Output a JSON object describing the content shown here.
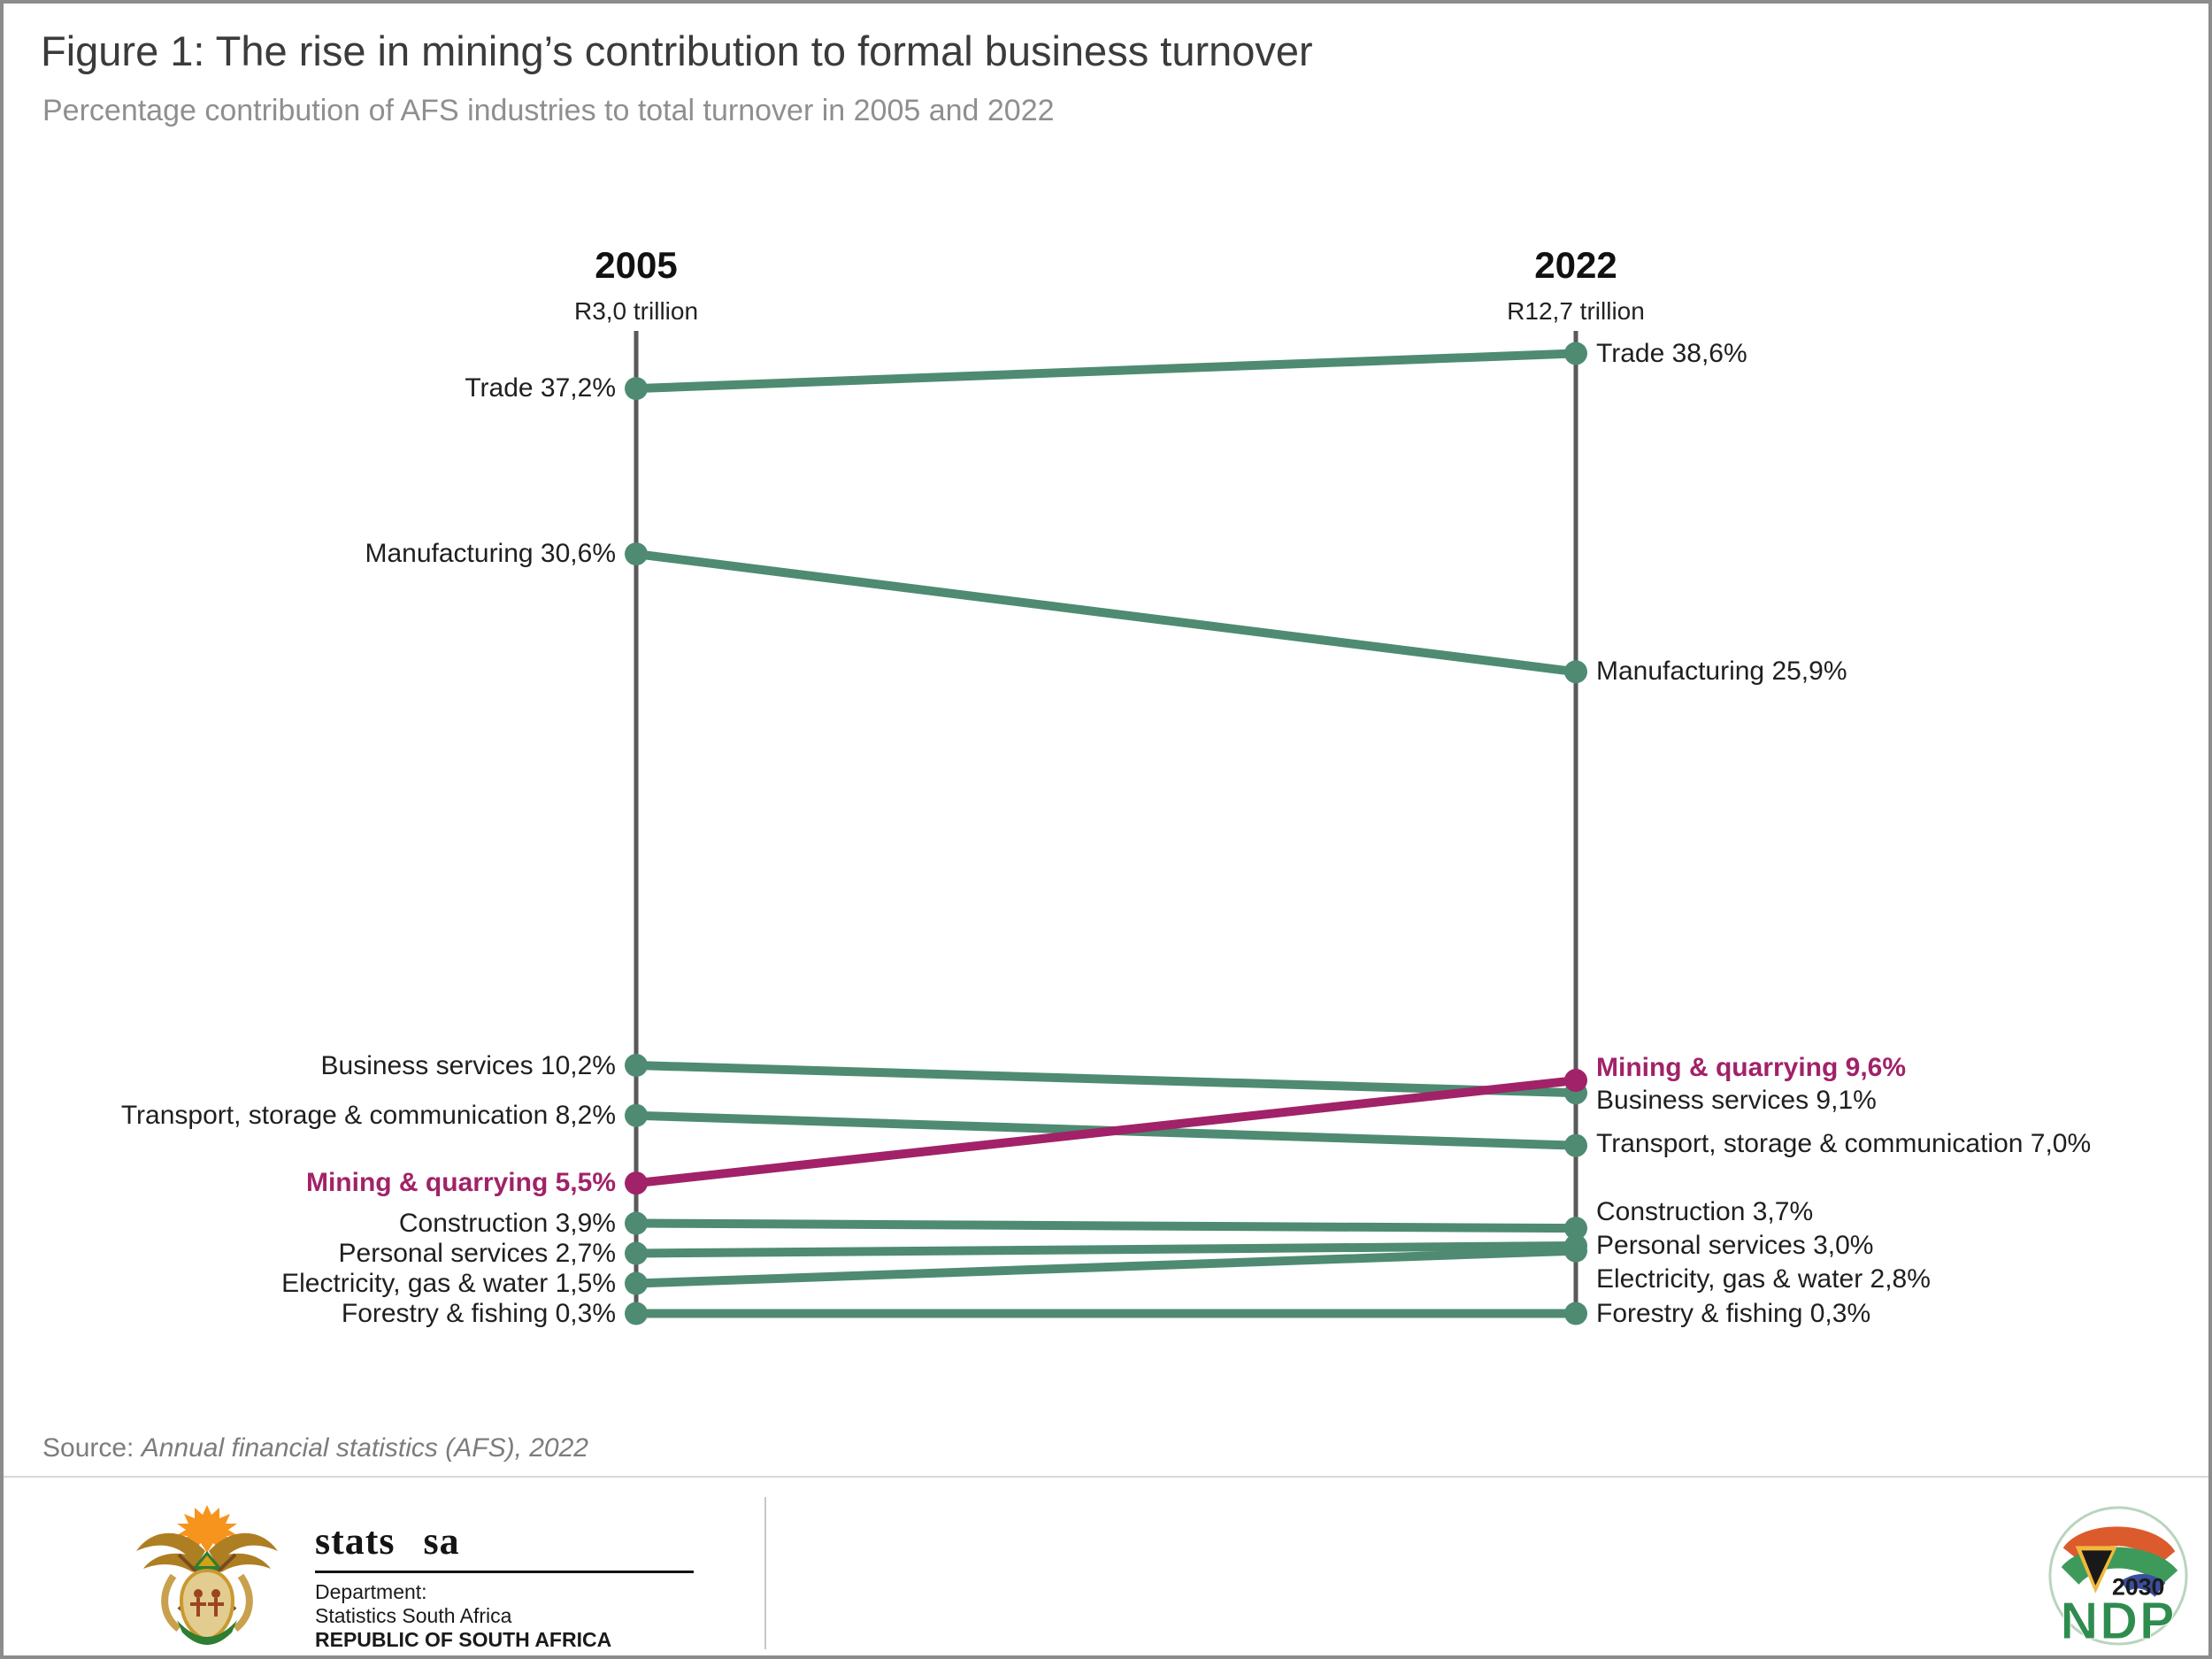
{
  "page": {
    "source_prefix": "Source: ",
    "source_text": "Annual financial statistics (AFS), 2022"
  },
  "chart_data": {
    "type": "slope",
    "title": "Figure 1: The rise in mining’s contribution to formal business turnover",
    "subtitle": "Percentage contribution of AFS industries to total turnover in 2005 and 2022",
    "unit": "percent of total turnover",
    "ylim": [
      0,
      40
    ],
    "grid": false,
    "columns": [
      {
        "year": "2005",
        "total": "R3,0 trillion"
      },
      {
        "year": "2022",
        "total": "R12,7 trillion"
      }
    ],
    "series": [
      {
        "name": "Trade",
        "values": [
          37.2,
          38.6
        ],
        "labels": [
          "Trade 37,2%",
          "Trade 38,6%"
        ],
        "label_y": [
          435,
          396
        ],
        "highlight": false
      },
      {
        "name": "Manufacturing",
        "values": [
          30.6,
          25.9
        ],
        "labels": [
          "Manufacturing 30,6%",
          "Manufacturing 25,9%"
        ],
        "label_y": [
          622,
          755
        ],
        "highlight": false
      },
      {
        "name": "Business services",
        "values": [
          10.2,
          9.1
        ],
        "labels": [
          "Business services 10,2%",
          "Business services 9,1%"
        ],
        "label_y": [
          1201,
          1240
        ],
        "highlight": false
      },
      {
        "name": "Transport, storage & communication",
        "values": [
          8.2,
          7.0
        ],
        "labels": [
          "Transport, storage & communication 8,2%",
          "Transport, storage & communication 7,0%"
        ],
        "label_y": [
          1257,
          1289
        ],
        "highlight": false
      },
      {
        "name": "Mining & quarrying",
        "values": [
          5.5,
          9.6
        ],
        "labels": [
          "Mining & quarrying 5,5%",
          "Mining & quarrying 9,6%"
        ],
        "label_y": [
          1333,
          1203
        ],
        "highlight": true
      },
      {
        "name": "Construction",
        "values": [
          3.9,
          3.7
        ],
        "labels": [
          "Construction 3,9%",
          "Construction 3,7%"
        ],
        "label_y": [
          1379,
          1366
        ],
        "highlight": false
      },
      {
        "name": "Personal services",
        "values": [
          2.7,
          3.0
        ],
        "labels": [
          "Personal services 2,7%",
          "Personal services 3,0%"
        ],
        "label_y": [
          1413,
          1404
        ],
        "highlight": false
      },
      {
        "name": "Electricity, gas & water",
        "values": [
          1.5,
          2.8
        ],
        "labels": [
          "Electricity, gas & water 1,5%",
          "Electricity, gas & water 2,8%"
        ],
        "label_y": [
          1447,
          1442
        ],
        "highlight": false
      },
      {
        "name": "Forestry & fishing",
        "values": [
          0.3,
          0.3
        ],
        "labels": [
          "Forestry & fishing 0,3%",
          "Forestry & fishing 0,3%"
        ],
        "label_y": [
          1481,
          1481
        ],
        "highlight": false
      }
    ],
    "colors": {
      "normal": "#4e8b72",
      "highlight": "#a12268",
      "axis": "#595959"
    }
  },
  "footer": {
    "statssa": {
      "wordmark": "stats sa",
      "dept_line1": "Department:",
      "dept_line2": "Statistics South Africa",
      "dept_line3": "REPUBLIC OF SOUTH AFRICA"
    },
    "ndp": {
      "year": "2030",
      "abbr": "NDP"
    }
  }
}
